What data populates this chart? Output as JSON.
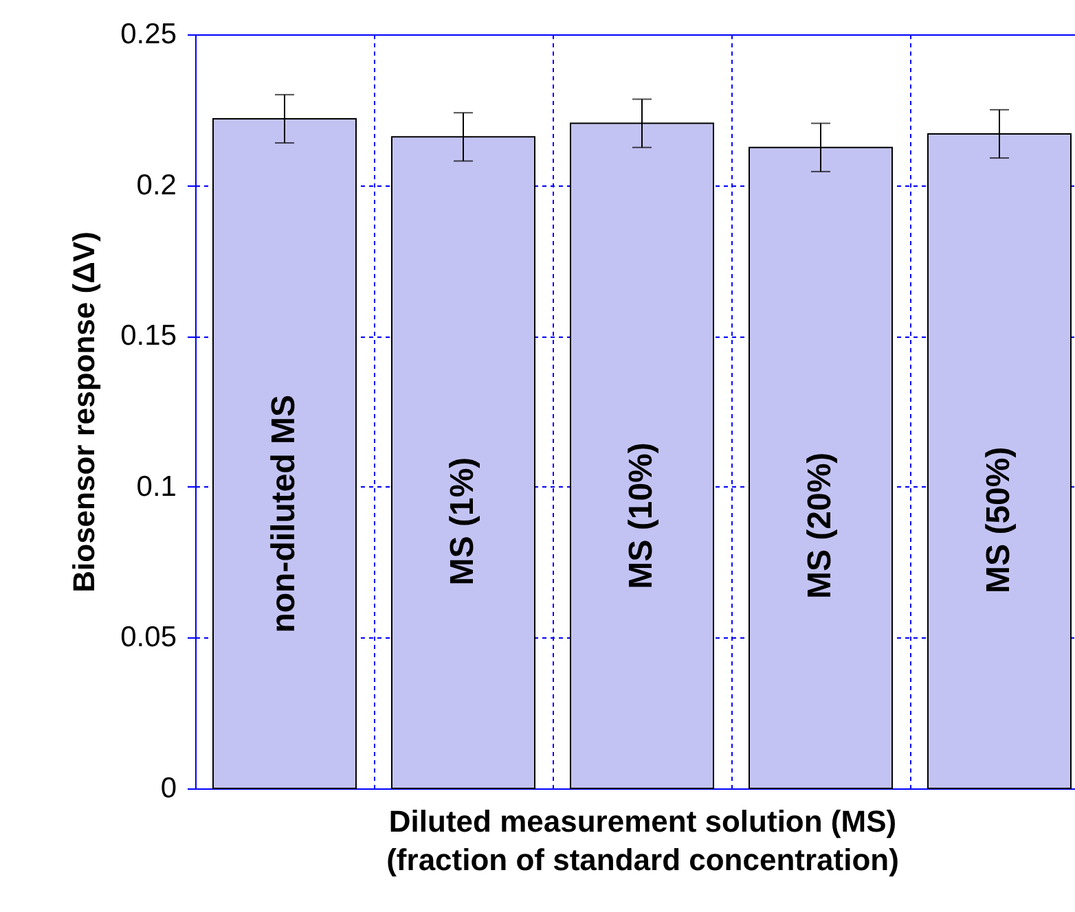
{
  "chart_data": {
    "type": "bar",
    "xlabel": "Diluted measurement solution (MS)\n(fraction of standard concentration)",
    "ylabel": "Biosensor response (ΔV)",
    "categories": [
      "non-diluted MS",
      "MS (1%)",
      "MS (10%)",
      "MS (20%)",
      "MS (50%)"
    ],
    "values": [
      0.222,
      0.216,
      0.2205,
      0.2125,
      0.217
    ],
    "errors": [
      0.008,
      0.008,
      0.008,
      0.008,
      0.008
    ],
    "color": "#c3c3f3",
    "ylim": [
      0,
      0.25
    ],
    "yticks": [
      0,
      0.05,
      0.1,
      0.15,
      0.2,
      0.25
    ],
    "grid": true,
    "tick_labels": "y"
  }
}
